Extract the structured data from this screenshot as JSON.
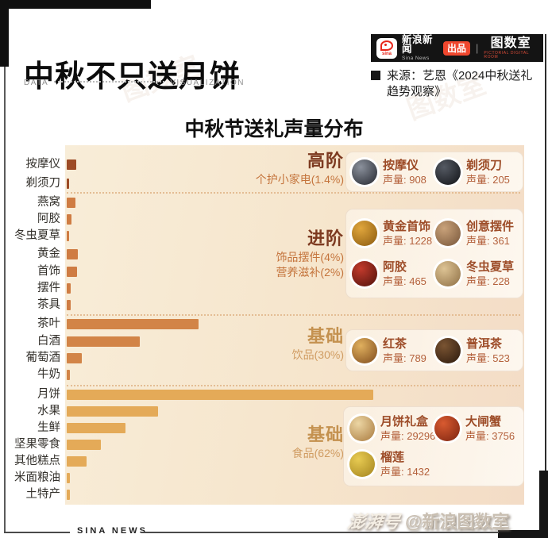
{
  "header": {
    "title": "中秋不只送月饼",
    "data_label": "DATA",
    "visualization_label": "VISUALIZATION",
    "brand": {
      "logo_word": "sina",
      "name_cn": "新浪新闻",
      "name_en": "Sina News",
      "badge": "出品",
      "divider": "|",
      "studio": "图数室",
      "studio_caption": "PICTORIAL DIGITAL ROOM"
    },
    "source_line1": "来源：艺恩《2024中秋送礼",
    "source_line2": "趋势观察》"
  },
  "chart_data": {
    "type": "bar",
    "orientation": "horizontal",
    "title": "中秋节送礼声量分布",
    "value_unit": "声量",
    "xlim": [
      0,
      29296
    ],
    "categories": [
      "按摩仪",
      "剃须刀",
      "燕窝",
      "阿胶",
      "冬虫夏草",
      "黄金",
      "首饰",
      "摆件",
      "茶具",
      "茶叶",
      "白酒",
      "葡萄酒",
      "牛奶",
      "月饼",
      "水果",
      "生鲜",
      "坚果零食",
      "其他糕点",
      "米面粮油",
      "土特产"
    ],
    "values": [
      908,
      205,
      830,
      465,
      228,
      1050,
      980,
      360,
      370,
      12600,
      7000,
      1430,
      300,
      29296,
      8700,
      5650,
      3230,
      1880,
      300,
      270
    ],
    "bar_groups": [
      {
        "name": "高阶 个护小家电(1.4%)",
        "color": "#9d4b26",
        "category_indexes": [
          0,
          1
        ]
      },
      {
        "name": "进阶 饰品摆件(4%) 营养滋补(2%)",
        "color": "#cf7c43",
        "category_indexes": [
          2,
          3,
          4,
          5,
          6,
          7,
          8
        ]
      },
      {
        "name": "基础 饮品(30%)",
        "color": "#d28447",
        "category_indexes": [
          9,
          10,
          11,
          12
        ]
      },
      {
        "name": "基础 食品(62%)",
        "color": "#e4aa58",
        "category_indexes": [
          13,
          14,
          15,
          16,
          17,
          18,
          19
        ]
      }
    ]
  },
  "tiers": [
    {
      "tier": "高阶",
      "subtitles": [
        "个护小家电(1.4%)"
      ],
      "items": [
        {
          "name": "按摩仪",
          "volume_label": "声量: 908",
          "icon": "massager-photo",
          "colors": [
            "#8b919c",
            "#23262e"
          ]
        },
        {
          "name": "剃须刀",
          "volume_label": "声量: 205",
          "icon": "shaver-photo",
          "colors": [
            "#555a63",
            "#101216"
          ]
        }
      ]
    },
    {
      "tier": "进阶",
      "subtitles": [
        "饰品摆件(4%)",
        "营养滋补(2%)"
      ],
      "items": [
        {
          "name": "黄金首饰",
          "volume_label": "声量: 1228",
          "icon": "gold-jewelry-photo",
          "colors": [
            "#e0a63c",
            "#8a5a10"
          ]
        },
        {
          "name": "创意摆件",
          "volume_label": "声量: 361",
          "icon": "ornament-photo",
          "colors": [
            "#c9a27a",
            "#77563a"
          ]
        },
        {
          "name": "阿胶",
          "volume_label": "声量: 465",
          "icon": "ejiao-photo",
          "colors": [
            "#c23a2c",
            "#4f120c"
          ]
        },
        {
          "name": "冬虫夏草",
          "volume_label": "声量: 228",
          "icon": "cordyceps-photo",
          "colors": [
            "#ddc394",
            "#8d6e44"
          ]
        }
      ]
    },
    {
      "tier": "基础",
      "subtitles": [
        "饮品(30%)"
      ],
      "items": [
        {
          "name": "红茶",
          "volume_label": "声量: 789",
          "icon": "black-tea-photo",
          "colors": [
            "#e0b05e",
            "#7e4a1c"
          ]
        },
        {
          "name": "普洱茶",
          "volume_label": "声量: 523",
          "icon": "puer-tea-photo",
          "colors": [
            "#7a5432",
            "#2b190d"
          ]
        }
      ]
    },
    {
      "tier": "基础",
      "subtitles": [
        "食品(62%)"
      ],
      "items": [
        {
          "name": "月饼礼盒",
          "volume_label": "声量: 29296",
          "icon": "mooncake-box-photo",
          "colors": [
            "#ecd6a4",
            "#a97a3e"
          ]
        },
        {
          "name": "大闸蟹",
          "volume_label": "声量: 3756",
          "icon": "crab-photo",
          "colors": [
            "#d85a30",
            "#7c2410"
          ]
        },
        {
          "name": "榴莲",
          "volume_label": "声量: 1432",
          "icon": "durian-photo",
          "colors": [
            "#e8cb52",
            "#a3831e"
          ]
        }
      ]
    }
  ],
  "footer": {
    "sina_news": "SINA NEWS",
    "watermark_brand": "澎湃号",
    "handle": "@新浪图数室"
  },
  "watermark_text": "图数室"
}
